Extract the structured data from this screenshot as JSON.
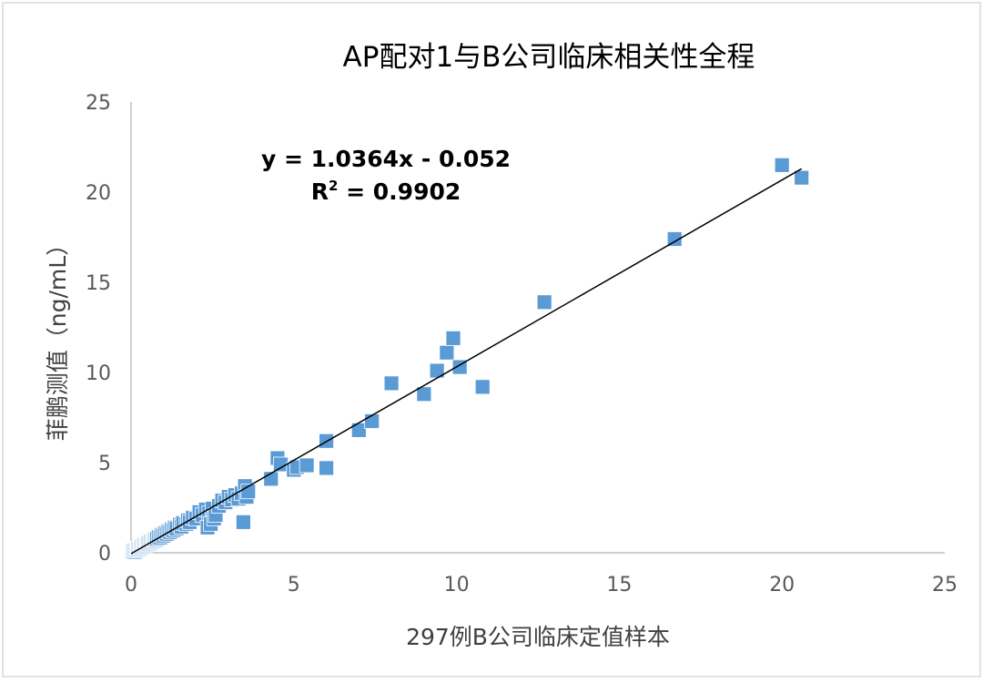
{
  "chart_data": {
    "type": "scatter",
    "title": "AP配对1与B公司临床相关性全程",
    "xlabel": "297例B公司临床定值样本",
    "ylabel": "菲鹏测值（ng/mL）",
    "xlim": [
      0,
      25
    ],
    "ylim": [
      0,
      25
    ],
    "x_ticks": [
      "0",
      "5",
      "10",
      "15",
      "20",
      "25"
    ],
    "y_ticks": [
      "0",
      "5",
      "10",
      "15",
      "20",
      "25"
    ],
    "grid": false,
    "legend": "none",
    "marker_color": "#5B9BD5",
    "trendline_color": "#000000",
    "equation_text": "y = 1.0364x - 0.052",
    "r2_label": "R",
    "r2_sup": "2",
    "r2_value_text": " = 0.9902",
    "trendline": {
      "slope": 1.0364,
      "intercept": -0.052,
      "x_range": [
        0,
        20.6
      ]
    },
    "points": [
      [
        0.05,
        0.05
      ],
      [
        0.08,
        0.1
      ],
      [
        0.1,
        0.05
      ],
      [
        0.12,
        0.15
      ],
      [
        0.15,
        0.12
      ],
      [
        0.18,
        0.2
      ],
      [
        0.2,
        0.18
      ],
      [
        0.22,
        0.25
      ],
      [
        0.25,
        0.22
      ],
      [
        0.28,
        0.3
      ],
      [
        0.3,
        0.28
      ],
      [
        0.32,
        0.35
      ],
      [
        0.35,
        0.32
      ],
      [
        0.38,
        0.4
      ],
      [
        0.4,
        0.38
      ],
      [
        0.42,
        0.45
      ],
      [
        0.45,
        0.42
      ],
      [
        0.48,
        0.5
      ],
      [
        0.5,
        0.48
      ],
      [
        0.52,
        0.55
      ],
      [
        0.55,
        0.52
      ],
      [
        0.58,
        0.6
      ],
      [
        0.6,
        0.58
      ],
      [
        0.62,
        0.65
      ],
      [
        0.65,
        0.62
      ],
      [
        0.68,
        0.7
      ],
      [
        0.7,
        0.68
      ],
      [
        0.72,
        0.75
      ],
      [
        0.75,
        0.72
      ],
      [
        0.78,
        0.8
      ],
      [
        0.8,
        0.78
      ],
      [
        0.85,
        0.88
      ],
      [
        0.9,
        0.85
      ],
      [
        0.95,
        1.0
      ],
      [
        1.0,
        0.95
      ],
      [
        1.05,
        1.1
      ],
      [
        1.1,
        1.05
      ],
      [
        1.15,
        1.2
      ],
      [
        1.2,
        1.15
      ],
      [
        1.25,
        1.3
      ],
      [
        1.3,
        1.25
      ],
      [
        1.35,
        1.4
      ],
      [
        1.4,
        1.35
      ],
      [
        1.5,
        1.55
      ],
      [
        1.55,
        1.45
      ],
      [
        1.6,
        1.65
      ],
      [
        1.7,
        1.6
      ],
      [
        1.75,
        1.8
      ],
      [
        1.8,
        1.7
      ],
      [
        1.9,
        1.95
      ],
      [
        2.0,
        1.9
      ],
      [
        2.1,
        2.25
      ],
      [
        2.2,
        2.1
      ],
      [
        2.3,
        2.4
      ],
      [
        2.35,
        1.4
      ],
      [
        2.4,
        2.2
      ],
      [
        2.45,
        1.6
      ],
      [
        2.5,
        2.45
      ],
      [
        2.55,
        1.9
      ],
      [
        2.6,
        2.1
      ],
      [
        2.7,
        2.6
      ],
      [
        2.8,
        2.9
      ],
      [
        2.9,
        2.8
      ],
      [
        3.0,
        3.1
      ],
      [
        3.1,
        2.95
      ],
      [
        3.2,
        3.2
      ],
      [
        3.3,
        3.0
      ],
      [
        3.4,
        3.3
      ],
      [
        3.45,
        1.7
      ],
      [
        3.5,
        3.7
      ],
      [
        3.55,
        3.1
      ],
      [
        3.6,
        3.4
      ],
      [
        4.3,
        4.1
      ],
      [
        4.5,
        5.25
      ],
      [
        4.6,
        4.9
      ],
      [
        5.0,
        4.6
      ],
      [
        5.1,
        4.75
      ],
      [
        5.4,
        4.85
      ],
      [
        6.0,
        4.7
      ],
      [
        6.0,
        6.2
      ],
      [
        7.0,
        6.8
      ],
      [
        7.4,
        7.3
      ],
      [
        8.0,
        9.4
      ],
      [
        9.0,
        8.8
      ],
      [
        9.4,
        10.1
      ],
      [
        9.7,
        11.1
      ],
      [
        9.9,
        11.9
      ],
      [
        10.1,
        10.3
      ],
      [
        10.8,
        9.2
      ],
      [
        12.7,
        13.9
      ],
      [
        16.7,
        17.4
      ],
      [
        20.0,
        21.5
      ],
      [
        20.6,
        20.8
      ]
    ]
  }
}
